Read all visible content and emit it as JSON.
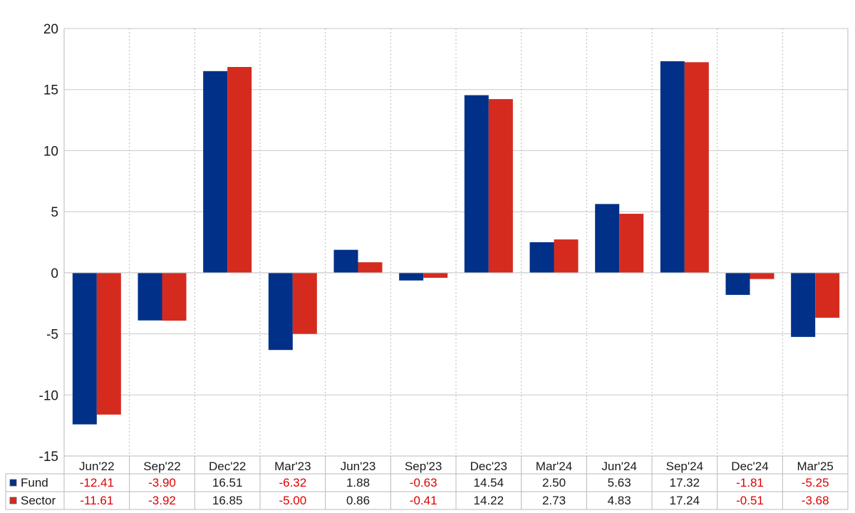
{
  "chart_data": {
    "type": "bar",
    "categories": [
      "Jun'22",
      "Sep'22",
      "Dec'22",
      "Mar'23",
      "Jun'23",
      "Sep'23",
      "Dec'23",
      "Mar'24",
      "Jun'24",
      "Sep'24",
      "Dec'24",
      "Mar'25"
    ],
    "series": [
      {
        "name": "Fund",
        "color": "#003087",
        "values": [
          -12.41,
          -3.9,
          16.51,
          -6.32,
          1.88,
          -0.63,
          14.54,
          2.5,
          5.63,
          17.32,
          -1.81,
          -5.25
        ],
        "labels": [
          "-12.41",
          "-3.90",
          "16.51",
          "-6.32",
          "1.88",
          "-0.63",
          "14.54",
          "2.50",
          "5.63",
          "17.32",
          "-1.81",
          "-5.25"
        ]
      },
      {
        "name": "Sector",
        "color": "#d52b1e",
        "values": [
          -11.61,
          -3.92,
          16.85,
          -5.0,
          0.86,
          -0.41,
          14.22,
          2.73,
          4.83,
          17.24,
          -0.51,
          -3.68
        ],
        "labels": [
          "-11.61",
          "-3.92",
          "16.85",
          "-5.00",
          "0.86",
          "-0.41",
          "14.22",
          "2.73",
          "4.83",
          "17.24",
          "-0.51",
          "-3.68"
        ]
      }
    ],
    "yticks": [
      "20",
      "15",
      "10",
      "5",
      "0",
      "-5",
      "-10",
      "-15"
    ],
    "ylim": [
      -15,
      20
    ],
    "grid": true,
    "legend": "table-below",
    "negative_color": "#e00000",
    "positive_color": "#1a1a1a"
  }
}
